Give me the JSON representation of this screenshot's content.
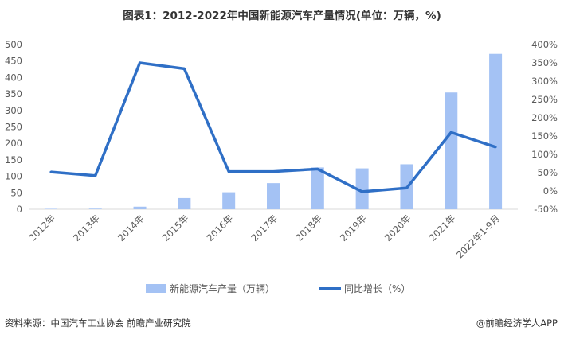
{
  "header": {
    "title": "图表1：2012-2022年中国新能源汽车产量情况(单位：万辆，%)"
  },
  "footer": {
    "source": "资料来源：中国汽车工业协会 前瞻产业研究院",
    "credit": "@前瞻经济学人APP"
  },
  "colors": {
    "bar": "#a4c2f4",
    "line": "#2f6fc6",
    "grid": "#d9d9d9",
    "axis_text": "#595959"
  },
  "chart_data": {
    "type": "bar",
    "categories": [
      "2012年",
      "2013年",
      "2014年",
      "2015年",
      "2016年",
      "2017年",
      "2018年",
      "2019年",
      "2020年",
      "2021年",
      "2022年1-9月"
    ],
    "series": [
      {
        "name": "新能源汽车产量（万辆）",
        "type": "bar",
        "axis": "left",
        "values": [
          1.3,
          1.8,
          7.8,
          34.0,
          51.7,
          79.4,
          127.0,
          124.2,
          136.6,
          354.5,
          471.7
        ]
      },
      {
        "name": "同比增长（%）",
        "type": "line",
        "axis": "right",
        "values": [
          52,
          42,
          350,
          334,
          53,
          53,
          60,
          -2,
          8,
          160,
          120
        ]
      }
    ],
    "y_left": {
      "min": 0,
      "max": 500,
      "step": 50,
      "ticks": [
        "0",
        "50",
        "100",
        "150",
        "200",
        "250",
        "300",
        "350",
        "400",
        "450",
        "500"
      ]
    },
    "y_right": {
      "min": -50,
      "max": 400,
      "step": 50,
      "ticks": [
        "-50%",
        "0%",
        "50%",
        "100%",
        "150%",
        "200%",
        "250%",
        "300%",
        "350%",
        "400%"
      ]
    },
    "grid": false,
    "legend_position": "bottom"
  }
}
